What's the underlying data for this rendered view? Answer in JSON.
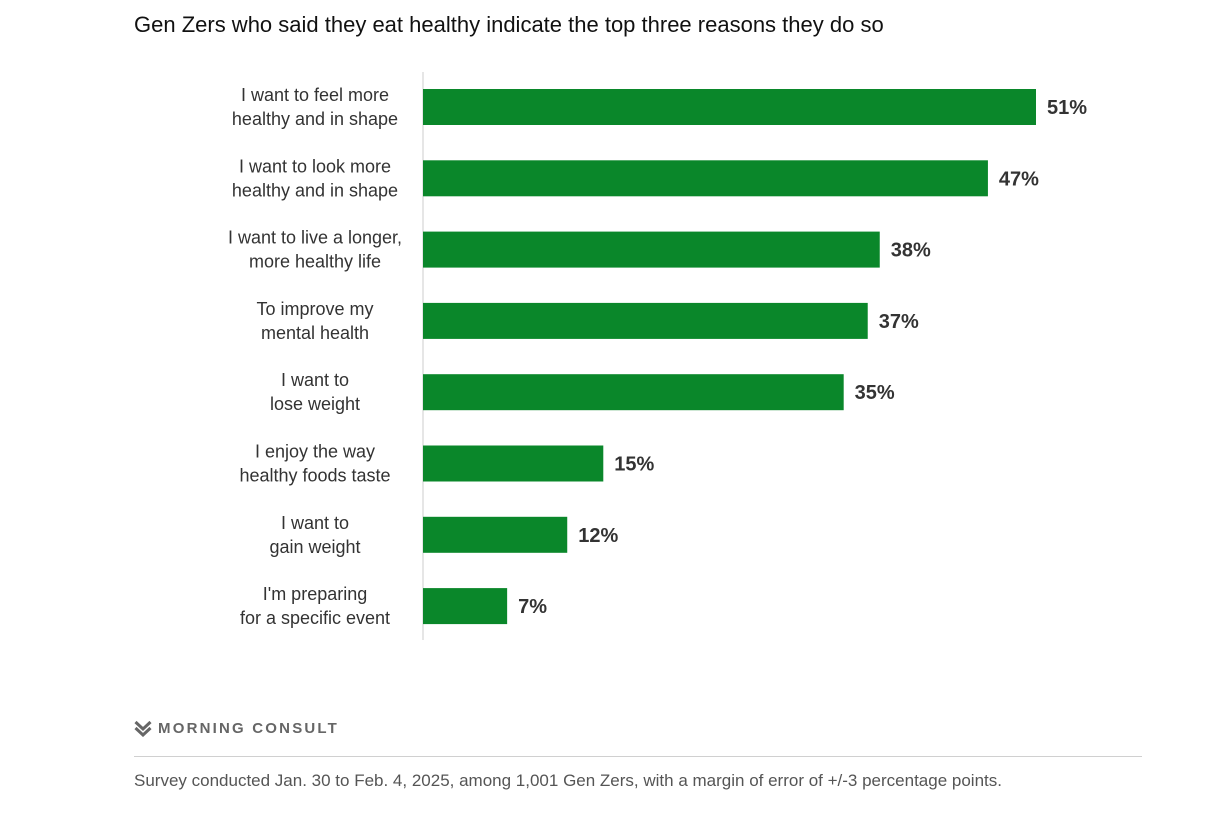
{
  "title": "Gen Zers who said they eat healthy indicate the top three reasons they do so",
  "brand": {
    "logo_icon": "morning-consult-logo-icon",
    "name": "MORNING CONSULT"
  },
  "footnote": "Survey conducted Jan. 30 to Feb. 4, 2025, among 1,001 Gen Zers, with a margin of error of +/-3 percentage points.",
  "colors": {
    "bar": "#0a872a",
    "axis": "#cccccc",
    "label": "#333333"
  },
  "chart_data": {
    "type": "bar",
    "orientation": "horizontal",
    "categories": [
      [
        "I want to feel more",
        "healthy and in shape"
      ],
      [
        "I want to look more",
        "healthy and in shape"
      ],
      [
        "I want to live a longer,",
        "more healthy life"
      ],
      [
        "To improve my",
        "mental health"
      ],
      [
        "I want to",
        "lose weight"
      ],
      [
        "I enjoy the way",
        "healthy foods taste"
      ],
      [
        "I want to",
        "gain weight"
      ],
      [
        "I'm preparing",
        "for a specific event"
      ]
    ],
    "values": [
      51,
      47,
      38,
      37,
      35,
      15,
      12,
      7
    ],
    "value_labels": [
      "51%",
      "47%",
      "38%",
      "37%",
      "35%",
      "15%",
      "12%",
      "7%"
    ],
    "title": "Gen Zers who said they eat healthy indicate the top three reasons they do so",
    "xlabel": "",
    "ylabel": "",
    "xlim": [
      0,
      51
    ],
    "grid": false,
    "legend": "none"
  }
}
